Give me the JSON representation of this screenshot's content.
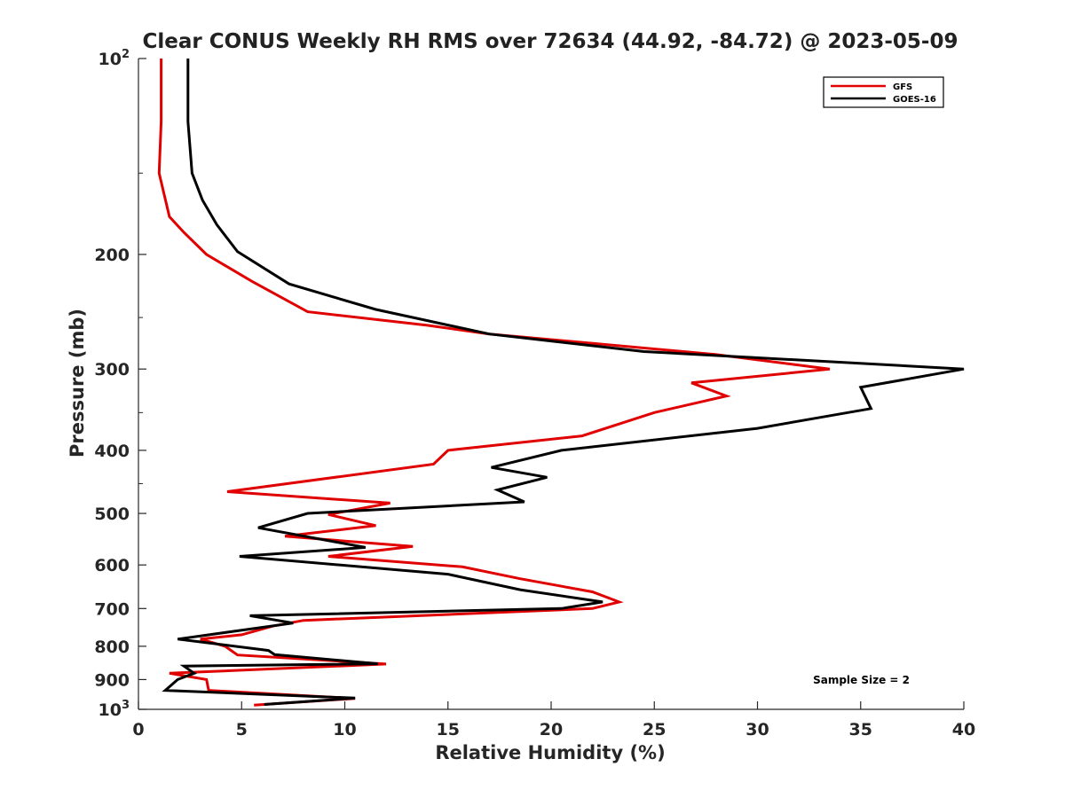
{
  "chart_data": {
    "type": "line",
    "title": "Clear CONUS Weekly RH RMS over 72634 (44.92, -84.72) @ 2023-05-09",
    "xlabel": "Relative Humidity (%)",
    "ylabel": "Pressure (mb)",
    "xlim": [
      0,
      40
    ],
    "ylim": [
      100,
      1000
    ],
    "y_scale": "log",
    "y_reversed": true,
    "x_ticks": [
      "0",
      "5",
      "10",
      "15",
      "20",
      "25",
      "30",
      "35",
      "40"
    ],
    "y_ticks": [
      {
        "value": 100,
        "label": "10",
        "sup": "2"
      },
      {
        "value": 200,
        "label": "200",
        "sup": ""
      },
      {
        "value": 300,
        "label": "300",
        "sup": ""
      },
      {
        "value": 400,
        "label": "400",
        "sup": ""
      },
      {
        "value": 500,
        "label": "500",
        "sup": ""
      },
      {
        "value": 600,
        "label": "600",
        "sup": ""
      },
      {
        "value": 700,
        "label": "700",
        "sup": ""
      },
      {
        "value": 800,
        "label": "800",
        "sup": ""
      },
      {
        "value": 900,
        "label": "900",
        "sup": ""
      },
      {
        "value": 1000,
        "label": "10",
        "sup": "3"
      }
    ],
    "grid": false,
    "legend_position": "top-right",
    "annotation": "Sample Size = 2",
    "series": [
      {
        "name": "GFS",
        "color": "#e00000",
        "points": [
          [
            1.1,
            100
          ],
          [
            1.1,
            125
          ],
          [
            1.0,
            150
          ],
          [
            1.5,
            175
          ],
          [
            2.2,
            185
          ],
          [
            3.3,
            200
          ],
          [
            5.5,
            220
          ],
          [
            8.2,
            245
          ],
          [
            14,
            257
          ],
          [
            17,
            265
          ],
          [
            28,
            285
          ],
          [
            33.5,
            300
          ],
          [
            26.8,
            315
          ],
          [
            28.5,
            330
          ],
          [
            25,
            350
          ],
          [
            21.5,
            380
          ],
          [
            15,
            400
          ],
          [
            14.3,
            420
          ],
          [
            4.3,
            463
          ],
          [
            12.2,
            482
          ],
          [
            9.2,
            502
          ],
          [
            11.5,
            522
          ],
          [
            7.1,
            542
          ],
          [
            13.3,
            562
          ],
          [
            9.2,
            582
          ],
          [
            15.7,
            604
          ],
          [
            18.5,
            630
          ],
          [
            22,
            660
          ],
          [
            23.3,
            684
          ],
          [
            22,
            700
          ],
          [
            8,
            730
          ],
          [
            6.5,
            745
          ],
          [
            5,
            768
          ],
          [
            3,
            780
          ],
          [
            4.2,
            800
          ],
          [
            4.8,
            825
          ],
          [
            12,
            852
          ],
          [
            1.5,
            880
          ],
          [
            3.3,
            900
          ],
          [
            3.4,
            935
          ],
          [
            10.5,
            962
          ],
          [
            5.6,
            985
          ]
        ]
      },
      {
        "name": "GOES-16",
        "color": "#000000",
        "points": [
          [
            2.4,
            100
          ],
          [
            2.4,
            125
          ],
          [
            2.6,
            150
          ],
          [
            3.1,
            165
          ],
          [
            3.8,
            180
          ],
          [
            4.8,
            198
          ],
          [
            7.3,
            222
          ],
          [
            11.5,
            243
          ],
          [
            17,
            265
          ],
          [
            24.5,
            282
          ],
          [
            40,
            300
          ],
          [
            35.0,
            320
          ],
          [
            35.5,
            345
          ],
          [
            30,
            370
          ],
          [
            20.5,
            400
          ],
          [
            17.1,
            425
          ],
          [
            19.8,
            440
          ],
          [
            17.4,
            460
          ],
          [
            18.7,
            480
          ],
          [
            8.2,
            500
          ],
          [
            5.8,
            526
          ],
          [
            11.0,
            564
          ],
          [
            4.9,
            582
          ],
          [
            15,
            620
          ],
          [
            18.5,
            655
          ],
          [
            22.5,
            684
          ],
          [
            20.5,
            700
          ],
          [
            5.4,
            718
          ],
          [
            7.5,
            737
          ],
          [
            1.9,
            780
          ],
          [
            6.3,
            812
          ],
          [
            6.6,
            824
          ],
          [
            11.6,
            851
          ],
          [
            2.2,
            858
          ],
          [
            2.7,
            880
          ],
          [
            1.9,
            900
          ],
          [
            1.3,
            935
          ],
          [
            10.5,
            961
          ],
          [
            6.1,
            983
          ]
        ]
      }
    ]
  }
}
